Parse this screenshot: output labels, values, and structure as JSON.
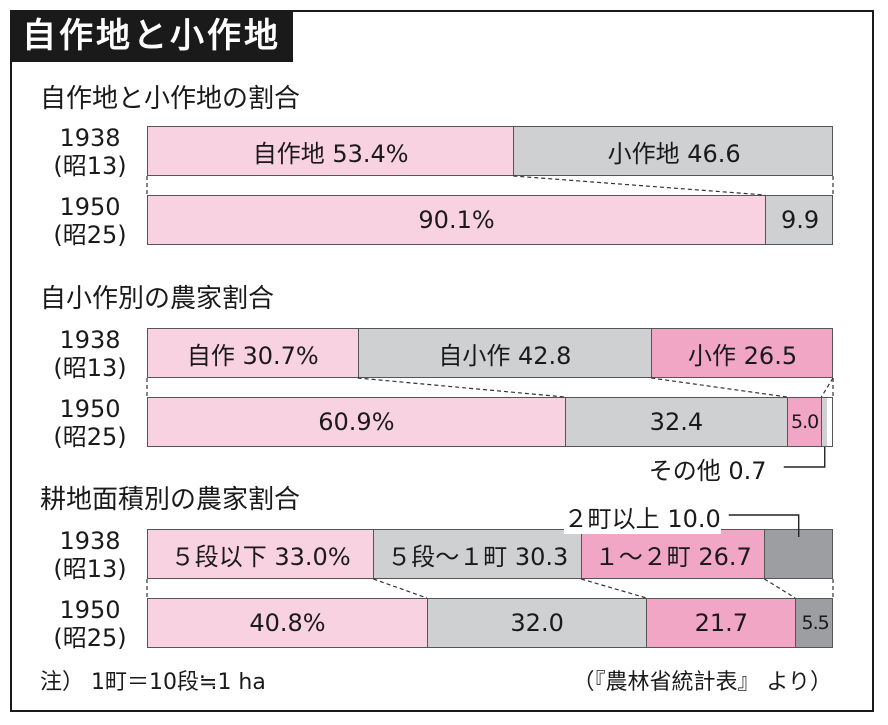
{
  "title": "自作地と小作地",
  "colors": {
    "pink_light": "#f9d2e2",
    "gray": "#cfd0d2",
    "pink": "#f2a6c6",
    "gray_dark": "#9c9ea1"
  },
  "note": "注） 1町＝10段≒1 ha",
  "source": "（『農林省統計表』 より）",
  "chart_data": [
    {
      "type": "bar",
      "stacked": "100%",
      "orientation": "horizontal",
      "title": "自作地と小作地の割合",
      "categories": [
        "1938\n(昭13)",
        "1950\n(昭25)"
      ],
      "series": [
        {
          "key": "own",
          "color": "pink_light",
          "values": [
            53.4,
            90.1
          ]
        },
        {
          "key": "tenant",
          "color": "gray",
          "values": [
            46.6,
            9.9
          ]
        }
      ],
      "data_labels": [
        [
          "自作地 53.4%",
          "小作地 46.6"
        ],
        [
          "90.1%",
          "9.9"
        ]
      ]
    },
    {
      "type": "bar",
      "stacked": "100%",
      "orientation": "horizontal",
      "title": "自小作別の農家割合",
      "categories": [
        "1938\n(昭13)",
        "1950\n(昭25)"
      ],
      "series": [
        {
          "key": "owner",
          "color": "pink_light",
          "values": [
            30.7,
            60.9
          ]
        },
        {
          "key": "part_owner",
          "color": "gray",
          "values": [
            42.8,
            32.4
          ]
        },
        {
          "key": "tenant",
          "color": "pink",
          "values": [
            26.5,
            5.0
          ]
        },
        {
          "key": "other",
          "color": "gray",
          "values": [
            0,
            0.7
          ]
        }
      ],
      "data_labels": [
        [
          "自作 30.7%",
          "自小作 42.8",
          "小作 26.5",
          ""
        ],
        [
          "60.9%",
          "32.4",
          "5.0",
          ""
        ]
      ],
      "annotations": [
        {
          "row": 1,
          "series": 3,
          "text": "その他 0.7"
        }
      ]
    },
    {
      "type": "bar",
      "stacked": "100%",
      "orientation": "horizontal",
      "title": "耕地面積別の農家割合",
      "categories": [
        "1938\n(昭13)",
        "1950\n(昭25)"
      ],
      "series": [
        {
          "key": "under_5tan",
          "color": "pink_light",
          "values": [
            33.0,
            40.8
          ]
        },
        {
          "key": "5tan_1cho",
          "color": "gray",
          "values": [
            30.3,
            32.0
          ]
        },
        {
          "key": "1_2cho",
          "color": "pink",
          "values": [
            26.7,
            21.7
          ]
        },
        {
          "key": "over_2cho",
          "color": "gray_dark",
          "values": [
            10.0,
            5.5
          ]
        }
      ],
      "data_labels": [
        [
          "５段以下 33.0%",
          "５段〜１町 30.3",
          "１〜２町 26.7",
          ""
        ],
        [
          "40.8%",
          "32.0",
          "21.7",
          "5.5"
        ]
      ],
      "annotations": [
        {
          "row": 0,
          "series": 3,
          "text": "２町以上 10.0"
        }
      ]
    }
  ]
}
